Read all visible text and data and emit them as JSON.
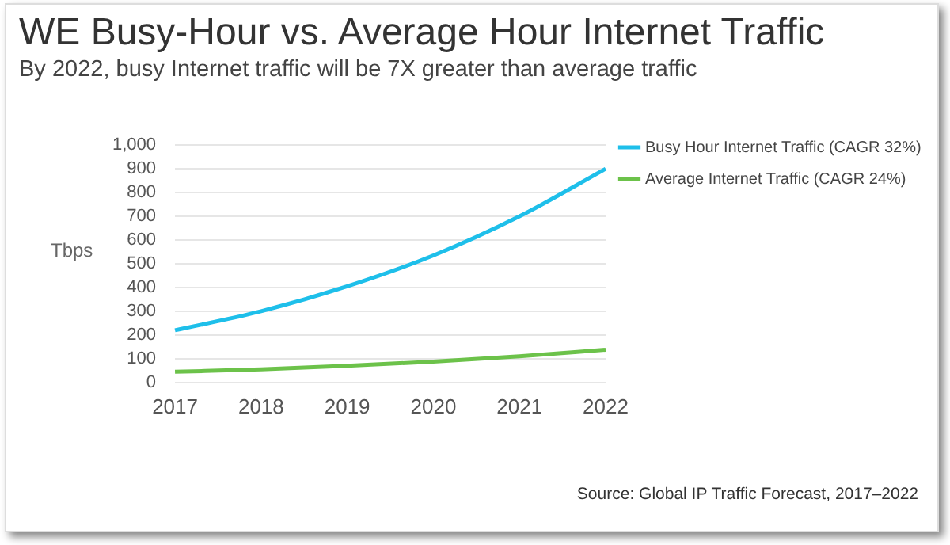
{
  "chart_data": {
    "type": "line",
    "title": "WE Busy-Hour vs. Average Hour Internet Traffic",
    "subtitle": "By 2022, busy Internet traffic will be 7X greater than average traffic",
    "ylabel": "Tbps",
    "categories": [
      "2017",
      "2018",
      "2019",
      "2020",
      "2021",
      "2022"
    ],
    "series": [
      {
        "name": "Busy Hour Internet Traffic (CAGR 32%)",
        "color": "#1ebfea",
        "values": [
          220,
          300,
          405,
          535,
          700,
          900
        ]
      },
      {
        "name": "Average Internet Traffic (CAGR 24%)",
        "color": "#6cc24a",
        "values": [
          45,
          55,
          70,
          88,
          110,
          138
        ]
      }
    ],
    "ylim": [
      0,
      1000
    ],
    "yticks": [
      0,
      {
        "value": 100,
        "label": "100"
      },
      200,
      300,
      400,
      500,
      600,
      700,
      800,
      900,
      {
        "value": 1000,
        "label": "1,000"
      }
    ],
    "grid": "y",
    "legend": "right",
    "marker": "none",
    "annotations": [
      "Source: Global IP Traffic Forecast, 2017–2022"
    ]
  }
}
